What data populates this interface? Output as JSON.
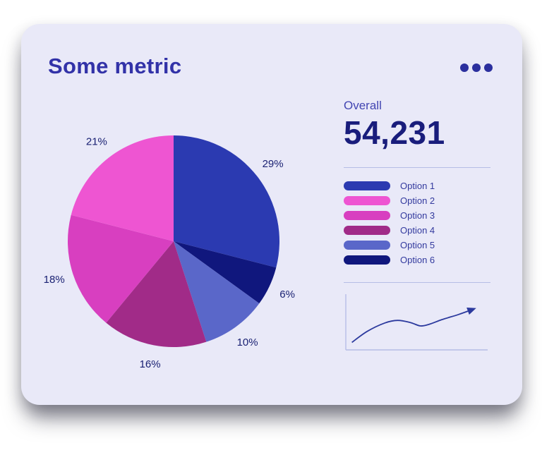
{
  "card": {
    "title": "Some metric"
  },
  "menu": {
    "icon": "ellipsis-icon"
  },
  "overall": {
    "label": "Overall",
    "value": "54,231"
  },
  "legend": {
    "items": [
      {
        "label": "Option 1",
        "color": "#2b3ab1"
      },
      {
        "label": "Option 2",
        "color": "#ee55d2"
      },
      {
        "label": "Option 3",
        "color": "#d83fc0"
      },
      {
        "label": "Option 4",
        "color": "#a12b88"
      },
      {
        "label": "Option 5",
        "color": "#5a67c9"
      },
      {
        "label": "Option 6",
        "color": "#10177d"
      }
    ]
  },
  "chart_data": [
    {
      "type": "pie",
      "title": "Some metric",
      "unit": "%",
      "start_angle_deg": -90,
      "direction": "clockwise",
      "legend_position": "right",
      "slices": [
        {
          "label": "Option 1",
          "value": 29,
          "color": "#2b3ab1"
        },
        {
          "label": "Option 6",
          "value": 6,
          "color": "#10177d"
        },
        {
          "label": "Option 5",
          "value": 10,
          "color": "#5a67c9"
        },
        {
          "label": "Option 4",
          "value": 16,
          "color": "#a12b88"
        },
        {
          "label": "Option 3",
          "value": 18,
          "color": "#d83fc0"
        },
        {
          "label": "Option 2",
          "value": 21,
          "color": "#ee55d2"
        }
      ]
    },
    {
      "type": "line",
      "title": "trend-sparkline",
      "color": "#2c3a9e",
      "axis_color": "#b6bde6",
      "arrow_end": true,
      "points": [
        [
          2,
          6
        ],
        [
          14,
          32
        ],
        [
          28,
          52
        ],
        [
          38,
          58
        ],
        [
          48,
          53
        ],
        [
          56,
          45
        ],
        [
          63,
          49
        ],
        [
          73,
          60
        ],
        [
          86,
          72
        ],
        [
          98,
          85
        ]
      ]
    }
  ]
}
